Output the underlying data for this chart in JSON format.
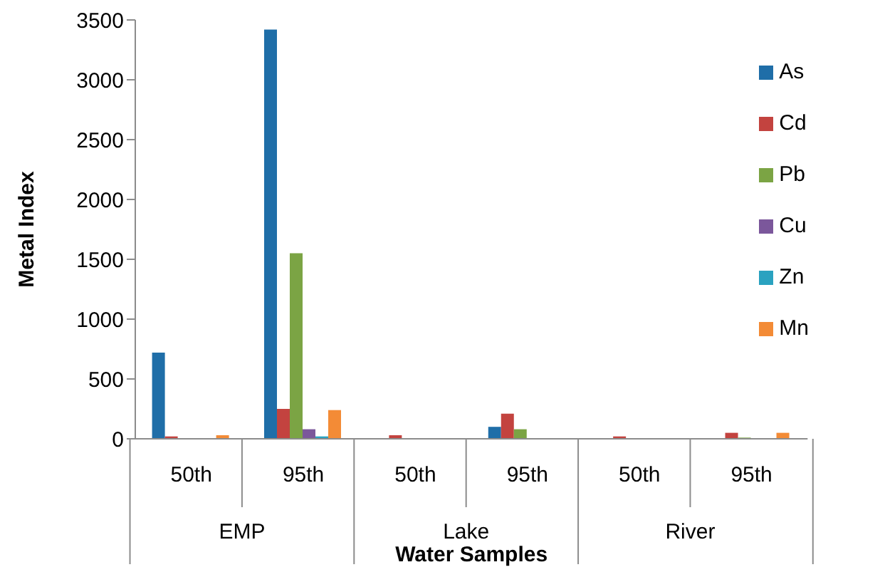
{
  "chart_data": {
    "type": "bar",
    "xlabel": "Water Samples",
    "ylabel": "Metal Index",
    "categories": [
      "50th",
      "95th",
      "50th",
      "95th",
      "50th",
      "95th"
    ],
    "annotations": [
      "EMP",
      "Lake",
      "River"
    ],
    "series": [
      {
        "name": "As",
        "color": "#1f6ea8",
        "values": [
          720,
          3420,
          0,
          100,
          0,
          0
        ]
      },
      {
        "name": "Cd",
        "color": "#c3433f",
        "values": [
          20,
          250,
          30,
          210,
          20,
          50
        ]
      },
      {
        "name": "Pb",
        "color": "#7ba444",
        "values": [
          0,
          1550,
          0,
          80,
          0,
          10
        ]
      },
      {
        "name": "Cu",
        "color": "#7b579b",
        "values": [
          0,
          80,
          0,
          0,
          0,
          0
        ]
      },
      {
        "name": "Zn",
        "color": "#2aa2c0",
        "values": [
          0,
          20,
          0,
          0,
          0,
          0
        ]
      },
      {
        "name": "Mn",
        "color": "#f38b36",
        "values": [
          30,
          240,
          0,
          0,
          0,
          50
        ]
      }
    ],
    "ylim": [
      0,
      3500
    ],
    "yticks": [
      0,
      500,
      1000,
      1500,
      2000,
      2500,
      3000,
      3500
    ],
    "grid": false,
    "legend": "top right"
  }
}
